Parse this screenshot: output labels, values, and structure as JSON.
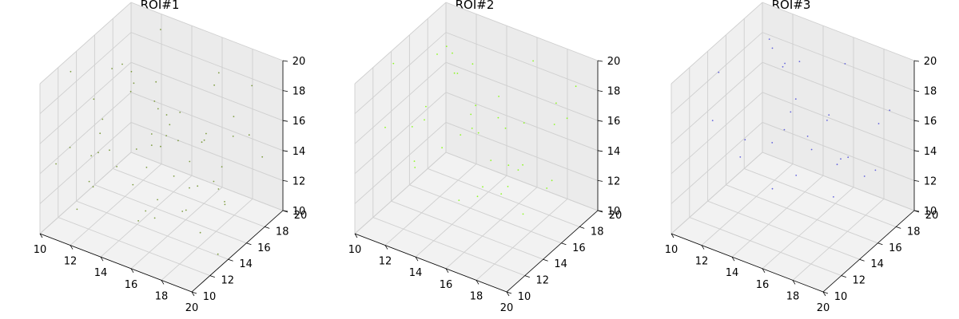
{
  "chart_data": [
    {
      "type": "scatter",
      "title": "ROI#1",
      "color": "#6b8e23",
      "xlim": [
        10,
        20
      ],
      "ylim": [
        10,
        20
      ],
      "zlim": [
        10,
        20
      ],
      "xticks": [
        "10",
        "12",
        "14",
        "16",
        "18",
        "20"
      ],
      "yticks": [
        "10",
        "12",
        "14",
        "16",
        "18",
        "20"
      ],
      "zticks": [
        "10",
        "12",
        "14",
        "16",
        "18",
        "20"
      ],
      "grid": true,
      "points": [
        [
          11.2,
          13.4,
          12.1
        ],
        [
          12.5,
          15.8,
          17.3
        ],
        [
          14.1,
          11.6,
          15.2
        ],
        [
          16.7,
          17.9,
          11.8
        ],
        [
          18.3,
          12.2,
          13.6
        ],
        [
          10.8,
          18.7,
          16.4
        ],
        [
          13.6,
          14.3,
          19.1
        ],
        [
          15.2,
          16.5,
          14.7
        ],
        [
          17.4,
          10.9,
          18.2
        ],
        [
          19.1,
          15.1,
          12.9
        ],
        [
          12.9,
          19.4,
          13.3
        ],
        [
          14.8,
          12.8,
          11.2
        ],
        [
          16.1,
          13.7,
          16.9
        ],
        [
          11.7,
          16.2,
          18.6
        ],
        [
          18.8,
          18.3,
          15.5
        ],
        [
          13.2,
          10.5,
          14.1
        ],
        [
          15.9,
          19.8,
          17.7
        ],
        [
          17.8,
          14.6,
          10.6
        ],
        [
          10.4,
          12.7,
          19.5
        ],
        [
          19.6,
          11.3,
          16.2
        ],
        [
          12.1,
          17.1,
          12.6
        ],
        [
          14.4,
          15.4,
          18.9
        ],
        [
          16.6,
          11.9,
          13.8
        ],
        [
          18.1,
          16.8,
          11.4
        ],
        [
          11.5,
          10.8,
          15.9
        ],
        [
          13.9,
          18.2,
          10.9
        ],
        [
          15.5,
          13.1,
          17.1
        ],
        [
          17.2,
          19.2,
          14.3
        ],
        [
          19.4,
          17.6,
          19.4
        ],
        [
          10.9,
          14.9,
          13.1
        ],
        [
          12.7,
          12.1,
          16.6
        ],
        [
          14.6,
          17.7,
          15.7
        ],
        [
          16.3,
          15.9,
          12.3
        ],
        [
          18.6,
          13.9,
          17.9
        ],
        [
          11.9,
          19.1,
          11.7
        ],
        [
          13.4,
          11.2,
          18.3
        ],
        [
          15.1,
          14.1,
          10.8
        ],
        [
          17.6,
          18.6,
          16.1
        ],
        [
          19.2,
          10.3,
          14.9
        ],
        [
          10.6,
          16.9,
          17.5
        ],
        [
          12.3,
          13.8,
          14.4
        ],
        [
          14.9,
          19.6,
          12.8
        ],
        [
          16.9,
          12.4,
          19.3
        ],
        [
          18.4,
          15.6,
          13.2
        ],
        [
          11.3,
          11.9,
          11.1
        ],
        [
          13.7,
          16.4,
          16.8
        ],
        [
          15.7,
          10.7,
          15.1
        ],
        [
          17.1,
          17.3,
          18.7
        ],
        [
          19.8,
          13.2,
          10.7
        ],
        [
          10.2,
          15.3,
          12.4
        ],
        [
          12.6,
          18.9,
          19.8
        ],
        [
          14.2,
          14.7,
          13.5
        ],
        [
          16.4,
          19.3,
          11.9
        ],
        [
          18.9,
          11.6,
          17.4
        ],
        [
          11.8,
          12.9,
          18.1
        ],
        [
          13.1,
          17.8,
          15.3
        ],
        [
          15.4,
          12.6,
          12.2
        ],
        [
          17.7,
          15.2,
          16.4
        ],
        [
          19.3,
          18.9,
          13.9
        ],
        [
          10.7,
          10.6,
          14.6
        ]
      ]
    },
    {
      "type": "scatter",
      "title": "ROI#2",
      "color": "#7cfc00",
      "xlim": [
        10,
        20
      ],
      "ylim": [
        10,
        20
      ],
      "zlim": [
        10,
        20
      ],
      "xticks": [
        "10",
        "12",
        "14",
        "16",
        "18",
        "20"
      ],
      "yticks": [
        "10",
        "12",
        "14",
        "16",
        "18",
        "20"
      ],
      "zticks": [
        "10",
        "12",
        "14",
        "16",
        "18",
        "20"
      ],
      "grid": true,
      "points": [
        [
          11.4,
          14.2,
          13.1
        ],
        [
          12.8,
          16.6,
          18.2
        ],
        [
          14.3,
          12.4,
          16.1
        ],
        [
          16.2,
          18.1,
          12.6
        ],
        [
          18.1,
          13.3,
          14.5
        ],
        [
          10.9,
          19.2,
          17.4
        ],
        [
          13.5,
          15.1,
          19.3
        ],
        [
          15.6,
          17.2,
          15.3
        ],
        [
          17.3,
          11.4,
          18.8
        ],
        [
          19.2,
          16.3,
          13.7
        ],
        [
          12.2,
          19.6,
          14.2
        ],
        [
          14.7,
          13.6,
          12.1
        ],
        [
          16.5,
          14.9,
          17.6
        ],
        [
          11.6,
          17.4,
          19.1
        ],
        [
          18.7,
          18.8,
          16.3
        ],
        [
          13.3,
          11.1,
          15.1
        ],
        [
          15.8,
          19.9,
          18.4
        ],
        [
          17.9,
          15.3,
          11.5
        ],
        [
          10.5,
          13.4,
          19.7
        ],
        [
          19.5,
          12.1,
          16.8
        ],
        [
          12.4,
          17.6,
          13.4
        ],
        [
          14.1,
          16.1,
          19.6
        ],
        [
          16.8,
          12.7,
          14.3
        ],
        [
          18.2,
          17.4,
          12.2
        ],
        [
          11.1,
          11.5,
          16.7
        ],
        [
          13.8,
          18.6,
          11.7
        ],
        [
          15.3,
          13.9,
          17.9
        ],
        [
          17.5,
          19.4,
          15.1
        ],
        [
          19.7,
          18.1,
          19.2
        ],
        [
          10.3,
          15.8,
          14.1
        ],
        [
          12.9,
          12.8,
          17.2
        ],
        [
          14.5,
          18.3,
          16.4
        ],
        [
          16.1,
          16.7,
          13.3
        ],
        [
          18.5,
          14.4,
          18.3
        ],
        [
          11.9,
          19.7,
          12.5
        ],
        [
          13.6,
          11.8,
          18.9
        ],
        [
          15.2,
          14.8,
          11.9
        ],
        [
          17.8,
          19.1,
          16.8
        ],
        [
          19.1,
          10.9,
          15.7
        ],
        [
          10.8,
          17.7,
          18.1
        ]
      ]
    },
    {
      "type": "scatter",
      "title": "ROI#3",
      "color": "#4b4bd8",
      "xlim": [
        10,
        20
      ],
      "ylim": [
        10,
        20
      ],
      "zlim": [
        10,
        20
      ],
      "xticks": [
        "10",
        "12",
        "14",
        "16",
        "18",
        "20"
      ],
      "yticks": [
        "10",
        "12",
        "14",
        "16",
        "18",
        "20"
      ],
      "zticks": [
        "10",
        "12",
        "14",
        "16",
        "18",
        "20"
      ],
      "grid": true,
      "points": [
        [
          11.8,
          15.1,
          14.2
        ],
        [
          13.1,
          17.3,
          18.6
        ],
        [
          14.9,
          12.9,
          16.4
        ],
        [
          16.6,
          18.4,
          13.1
        ],
        [
          18.4,
          14.2,
          15.6
        ],
        [
          11.2,
          19.1,
          17.9
        ],
        [
          13.8,
          15.9,
          19.4
        ],
        [
          15.7,
          17.8,
          15.9
        ],
        [
          17.6,
          12.3,
          18.2
        ],
        [
          19.3,
          16.9,
          14.1
        ],
        [
          12.5,
          19.5,
          14.8
        ],
        [
          14.2,
          14.1,
          12.4
        ],
        [
          16.9,
          15.6,
          17.2
        ],
        [
          11.6,
          18.1,
          19.2
        ],
        [
          18.8,
          19.3,
          16.6
        ],
        [
          13.4,
          11.9,
          15.4
        ],
        [
          15.5,
          19.9,
          18.1
        ],
        [
          17.2,
          15.8,
          12.1
        ],
        [
          10.9,
          13.7,
          19.1
        ],
        [
          19.6,
          12.6,
          17.3
        ],
        [
          12.7,
          17.9,
          13.7
        ],
        [
          14.6,
          16.4,
          19.8
        ],
        [
          16.3,
          13.2,
          14.6
        ],
        [
          18.1,
          17.7,
          12.8
        ],
        [
          11.4,
          12.2,
          16.9
        ],
        [
          13.9,
          18.9,
          12.3
        ],
        [
          15.1,
          14.6,
          17.6
        ],
        [
          17.9,
          19.6,
          15.2
        ]
      ]
    }
  ]
}
